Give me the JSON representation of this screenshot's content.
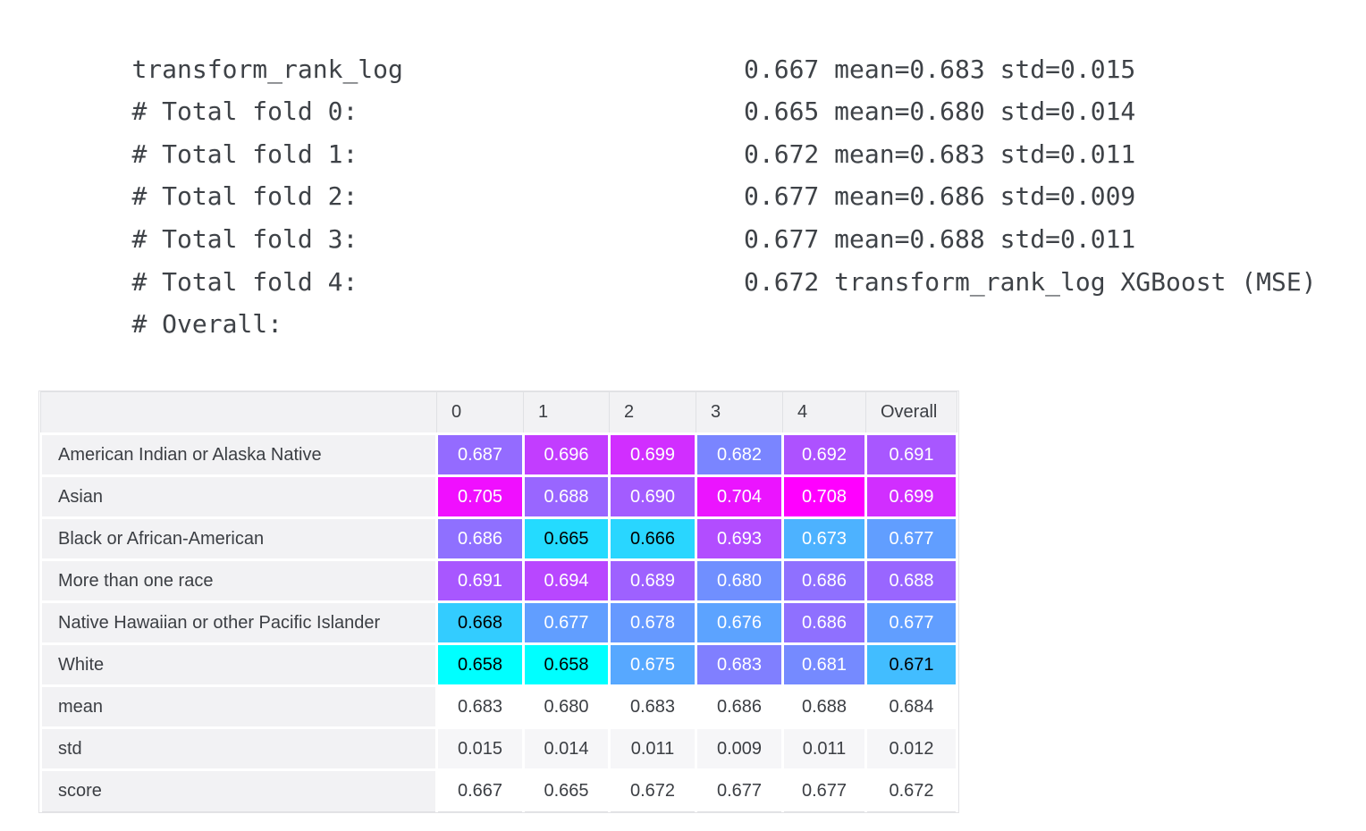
{
  "log": {
    "title": "transform_rank_log",
    "lines": [
      {
        "label": "# Total fold 0:",
        "value": "0.667 mean=0.683 std=0.015"
      },
      {
        "label": "# Total fold 1:",
        "value": "0.665 mean=0.680 std=0.014"
      },
      {
        "label": "# Total fold 2:",
        "value": "0.672 mean=0.683 std=0.011"
      },
      {
        "label": "# Total fold 3:",
        "value": "0.677 mean=0.686 std=0.009"
      },
      {
        "label": "# Total fold 4:",
        "value": "0.677 mean=0.688 std=0.011"
      },
      {
        "label": "# Overall:",
        "value": "0.672 transform_rank_log XGBoost (MSE)"
      }
    ]
  },
  "table": {
    "corner_label": "",
    "columns": [
      "0",
      "1",
      "2",
      "3",
      "4",
      "Overall"
    ],
    "rows": [
      {
        "label": "American Indian or Alaska Native",
        "colored": true,
        "values": [
          "0.687",
          "0.696",
          "0.699",
          "0.682",
          "0.692",
          "0.691"
        ]
      },
      {
        "label": "Asian",
        "colored": true,
        "values": [
          "0.705",
          "0.688",
          "0.690",
          "0.704",
          "0.708",
          "0.699"
        ]
      },
      {
        "label": "Black or African-American",
        "colored": true,
        "values": [
          "0.686",
          "0.665",
          "0.666",
          "0.693",
          "0.673",
          "0.677"
        ]
      },
      {
        "label": "More than one race",
        "colored": true,
        "values": [
          "0.691",
          "0.694",
          "0.689",
          "0.680",
          "0.686",
          "0.688"
        ]
      },
      {
        "label": "Native Hawaiian or other Pacific Islander",
        "colored": true,
        "values": [
          "0.668",
          "0.677",
          "0.678",
          "0.676",
          "0.686",
          "0.677"
        ]
      },
      {
        "label": "White",
        "colored": true,
        "values": [
          "0.658",
          "0.658",
          "0.675",
          "0.683",
          "0.681",
          "0.671"
        ]
      },
      {
        "label": "mean",
        "colored": false,
        "values": [
          "0.683",
          "0.680",
          "0.683",
          "0.686",
          "0.688",
          "0.684"
        ]
      },
      {
        "label": "std",
        "colored": false,
        "values": [
          "0.015",
          "0.014",
          "0.011",
          "0.009",
          "0.011",
          "0.012"
        ]
      },
      {
        "label": "score",
        "colored": false,
        "values": [
          "0.667",
          "0.665",
          "0.672",
          "0.677",
          "0.677",
          "0.672"
        ]
      }
    ],
    "colormap": {
      "name": "cool",
      "start": "#00FFFF",
      "end": "#FF00FF",
      "vmin": 0.658,
      "vmax": 0.708,
      "light_text": "#ffffff",
      "dark_text": "#000000",
      "text_luminance_threshold": 0.408
    }
  },
  "chart_data": {
    "type": "heatmap",
    "title": "transform_rank_log XGBoost (MSE) scores by race group and CV fold",
    "columns": [
      "0",
      "1",
      "2",
      "3",
      "4",
      "Overall"
    ],
    "rows": [
      "American Indian or Alaska Native",
      "Asian",
      "Black or African-American",
      "More than one race",
      "Native Hawaiian or other Pacific Islander",
      "White",
      "mean",
      "std",
      "score"
    ],
    "matrix": [
      [
        0.687,
        0.696,
        0.699,
        0.682,
        0.692,
        0.691
      ],
      [
        0.705,
        0.688,
        0.69,
        0.704,
        0.708,
        0.699
      ],
      [
        0.686,
        0.665,
        0.666,
        0.693,
        0.673,
        0.677
      ],
      [
        0.691,
        0.694,
        0.689,
        0.68,
        0.686,
        0.688
      ],
      [
        0.668,
        0.677,
        0.678,
        0.676,
        0.686,
        0.677
      ],
      [
        0.658,
        0.658,
        0.675,
        0.683,
        0.681,
        0.671
      ],
      [
        0.683,
        0.68,
        0.683,
        0.686,
        0.688,
        0.684
      ],
      [
        0.015,
        0.014,
        0.011,
        0.009,
        0.011,
        0.012
      ],
      [
        0.667,
        0.665,
        0.672,
        0.677,
        0.677,
        0.672
      ]
    ],
    "colormap": "cool",
    "color_range": [
      0.658,
      0.708
    ],
    "colored_row_indices": [
      0,
      1,
      2,
      3,
      4,
      5
    ]
  },
  "colors": {
    "page_bg": "#ffffff",
    "log_text": "#3e4247",
    "table_text": "#3b3e43",
    "header_bg": "#f2f2f4",
    "stripe_bg": "#f6f6f8",
    "grid_border": "#e0e1e4",
    "cell_gap": "#ffffff"
  }
}
